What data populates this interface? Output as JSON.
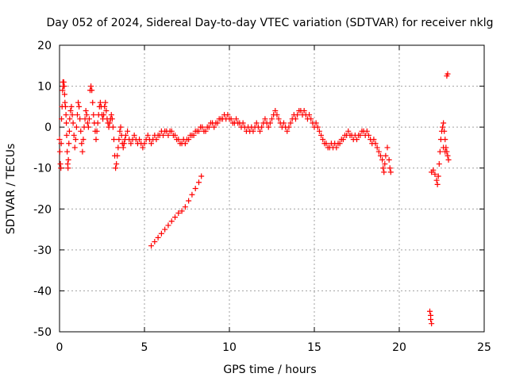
{
  "chart_data": {
    "type": "scatter",
    "title": "Day 052 of 2024, Sidereal Day-to-day VTEC variation (SDTVAR) for receiver nklg",
    "xlabel": "GPS time / hours",
    "ylabel": "SDTVAR / TECUs",
    "xlim": [
      0,
      25
    ],
    "ylim": [
      -50,
      20
    ],
    "xticks": [
      0,
      5,
      10,
      15,
      20,
      25
    ],
    "yticks": [
      -50,
      -40,
      -30,
      -20,
      -10,
      0,
      10,
      20
    ],
    "grid": true,
    "marker": "+",
    "color": "#ff0000",
    "series": [
      {
        "name": "nklg",
        "points": [
          [
            0.0,
            -3
          ],
          [
            0.02,
            -6
          ],
          [
            0.05,
            -9
          ],
          [
            0.08,
            -10
          ],
          [
            0.1,
            -4
          ],
          [
            0.12,
            2
          ],
          [
            0.15,
            5
          ],
          [
            0.18,
            9
          ],
          [
            0.2,
            11
          ],
          [
            0.22,
            10
          ],
          [
            0.25,
            11
          ],
          [
            0.28,
            10
          ],
          [
            0.3,
            8
          ],
          [
            0.32,
            6
          ],
          [
            0.35,
            5
          ],
          [
            0.38,
            3
          ],
          [
            0.4,
            1
          ],
          [
            0.42,
            -2
          ],
          [
            0.45,
            -6
          ],
          [
            0.48,
            -9
          ],
          [
            0.5,
            -10
          ],
          [
            0.52,
            -8
          ],
          [
            0.55,
            -4
          ],
          [
            0.58,
            -1
          ],
          [
            0.6,
            2
          ],
          [
            0.65,
            4
          ],
          [
            0.7,
            5
          ],
          [
            0.75,
            3
          ],
          [
            0.8,
            1
          ],
          [
            0.85,
            -2
          ],
          [
            0.9,
            -5
          ],
          [
            0.95,
            -3
          ],
          [
            1.0,
            0
          ],
          [
            1.05,
            3
          ],
          [
            1.1,
            6
          ],
          [
            1.15,
            5
          ],
          [
            1.2,
            2
          ],
          [
            1.25,
            -1
          ],
          [
            1.3,
            -4
          ],
          [
            1.35,
            -6
          ],
          [
            1.4,
            -3
          ],
          [
            1.45,
            0
          ],
          [
            1.5,
            2
          ],
          [
            1.55,
            4
          ],
          [
            1.6,
            3
          ],
          [
            1.65,
            1
          ],
          [
            1.7,
            0
          ],
          [
            1.75,
            2
          ],
          [
            1.8,
            9
          ],
          [
            1.85,
            10
          ],
          [
            1.9,
            9
          ],
          [
            1.95,
            6
          ],
          [
            2.0,
            3
          ],
          [
            2.05,
            1
          ],
          [
            2.1,
            -1
          ],
          [
            2.15,
            -3
          ],
          [
            2.2,
            -1
          ],
          [
            2.25,
            1
          ],
          [
            2.3,
            3
          ],
          [
            2.35,
            5
          ],
          [
            2.4,
            6
          ],
          [
            2.45,
            5
          ],
          [
            2.5,
            3
          ],
          [
            2.55,
            2
          ],
          [
            2.6,
            3
          ],
          [
            2.65,
            5
          ],
          [
            2.7,
            6
          ],
          [
            2.75,
            4
          ],
          [
            2.8,
            2
          ],
          [
            2.85,
            1
          ],
          [
            2.9,
            0
          ],
          [
            2.95,
            1
          ],
          [
            3.0,
            2
          ],
          [
            3.05,
            3
          ],
          [
            3.1,
            2
          ],
          [
            3.15,
            0
          ],
          [
            3.2,
            -3
          ],
          [
            3.25,
            -7
          ],
          [
            3.3,
            -10
          ],
          [
            3.35,
            -9
          ],
          [
            3.4,
            -7
          ],
          [
            3.45,
            -5
          ],
          [
            3.5,
            -3
          ],
          [
            3.55,
            -1
          ],
          [
            3.6,
            0
          ],
          [
            3.65,
            -2
          ],
          [
            3.7,
            -4
          ],
          [
            3.75,
            -5
          ],
          [
            3.8,
            -4
          ],
          [
            3.85,
            -3
          ],
          [
            3.9,
            -2
          ],
          [
            4.0,
            -1
          ],
          [
            4.1,
            -3
          ],
          [
            4.2,
            -4
          ],
          [
            4.3,
            -3
          ],
          [
            4.4,
            -2
          ],
          [
            4.5,
            -3
          ],
          [
            4.6,
            -4
          ],
          [
            4.7,
            -3
          ],
          [
            4.8,
            -4
          ],
          [
            4.9,
            -5
          ],
          [
            5.0,
            -4
          ],
          [
            5.1,
            -3
          ],
          [
            5.2,
            -2
          ],
          [
            5.3,
            -3
          ],
          [
            5.4,
            -4
          ],
          [
            5.5,
            -3
          ],
          [
            5.6,
            -2
          ],
          [
            5.7,
            -3
          ],
          [
            5.8,
            -2
          ],
          [
            5.9,
            -2
          ],
          [
            6.0,
            -1
          ],
          [
            6.1,
            -2
          ],
          [
            6.2,
            -1
          ],
          [
            6.3,
            -1
          ],
          [
            6.4,
            -2
          ],
          [
            6.5,
            -1
          ],
          [
            6.6,
            -1
          ],
          [
            6.7,
            -2
          ],
          [
            6.8,
            -2
          ],
          [
            6.9,
            -3
          ],
          [
            7.0,
            -3
          ],
          [
            7.1,
            -4
          ],
          [
            7.2,
            -4
          ],
          [
            7.3,
            -3
          ],
          [
            7.4,
            -4
          ],
          [
            7.5,
            -3
          ],
          [
            7.6,
            -3
          ],
          [
            7.7,
            -2
          ],
          [
            7.8,
            -2
          ],
          [
            7.9,
            -2
          ],
          [
            8.0,
            -1
          ],
          [
            8.1,
            -1
          ],
          [
            8.2,
            -1
          ],
          [
            8.3,
            0
          ],
          [
            8.4,
            0
          ],
          [
            8.5,
            -1
          ],
          [
            8.6,
            -1
          ],
          [
            8.7,
            0
          ],
          [
            8.8,
            0
          ],
          [
            8.9,
            1
          ],
          [
            9.0,
            1
          ],
          [
            9.1,
            0
          ],
          [
            9.2,
            1
          ],
          [
            9.3,
            1
          ],
          [
            9.4,
            2
          ],
          [
            9.5,
            2
          ],
          [
            9.6,
            2
          ],
          [
            9.7,
            3
          ],
          [
            9.8,
            2
          ],
          [
            9.9,
            3
          ],
          [
            10.0,
            2
          ],
          [
            10.1,
            2
          ],
          [
            10.2,
            1
          ],
          [
            10.3,
            1
          ],
          [
            10.4,
            2
          ],
          [
            10.5,
            1
          ],
          [
            10.6,
            1
          ],
          [
            10.7,
            0
          ],
          [
            10.8,
            1
          ],
          [
            10.9,
            0
          ],
          [
            11.0,
            -1
          ],
          [
            11.1,
            0
          ],
          [
            11.2,
            -1
          ],
          [
            11.3,
            0
          ],
          [
            11.4,
            -1
          ],
          [
            11.5,
            0
          ],
          [
            11.6,
            1
          ],
          [
            11.7,
            0
          ],
          [
            11.8,
            -1
          ],
          [
            11.9,
            0
          ],
          [
            12.0,
            1
          ],
          [
            12.1,
            2
          ],
          [
            12.2,
            1
          ],
          [
            12.3,
            0
          ],
          [
            12.4,
            1
          ],
          [
            12.5,
            2
          ],
          [
            12.6,
            3
          ],
          [
            12.7,
            4
          ],
          [
            12.8,
            3
          ],
          [
            12.9,
            2
          ],
          [
            13.0,
            1
          ],
          [
            13.1,
            0
          ],
          [
            13.2,
            1
          ],
          [
            13.3,
            0
          ],
          [
            13.4,
            -1
          ],
          [
            13.5,
            0
          ],
          [
            13.6,
            1
          ],
          [
            13.7,
            2
          ],
          [
            13.8,
            3
          ],
          [
            13.9,
            2
          ],
          [
            14.0,
            3
          ],
          [
            14.1,
            4
          ],
          [
            14.2,
            4
          ],
          [
            14.3,
            3
          ],
          [
            14.4,
            4
          ],
          [
            14.5,
            3
          ],
          [
            14.6,
            2
          ],
          [
            14.7,
            3
          ],
          [
            14.8,
            2
          ],
          [
            14.9,
            1
          ],
          [
            15.0,
            0
          ],
          [
            15.1,
            1
          ],
          [
            15.2,
            0
          ],
          [
            15.3,
            -1
          ],
          [
            15.4,
            -2
          ],
          [
            15.5,
            -3
          ],
          [
            15.6,
            -4
          ],
          [
            15.7,
            -4
          ],
          [
            15.8,
            -5
          ],
          [
            15.9,
            -5
          ],
          [
            16.0,
            -4
          ],
          [
            16.1,
            -5
          ],
          [
            16.2,
            -4
          ],
          [
            16.3,
            -5
          ],
          [
            16.4,
            -4
          ],
          [
            16.5,
            -4
          ],
          [
            16.6,
            -3
          ],
          [
            16.7,
            -3
          ],
          [
            16.8,
            -2
          ],
          [
            16.9,
            -2
          ],
          [
            17.0,
            -1
          ],
          [
            17.1,
            -2
          ],
          [
            17.2,
            -2
          ],
          [
            17.3,
            -3
          ],
          [
            17.4,
            -2
          ],
          [
            17.5,
            -3
          ],
          [
            17.6,
            -2
          ],
          [
            17.7,
            -2
          ],
          [
            17.8,
            -1
          ],
          [
            17.9,
            -1
          ],
          [
            18.0,
            -2
          ],
          [
            18.1,
            -1
          ],
          [
            18.2,
            -2
          ],
          [
            18.3,
            -3
          ],
          [
            18.4,
            -4
          ],
          [
            18.5,
            -3
          ],
          [
            18.6,
            -4
          ],
          [
            18.7,
            -5
          ],
          [
            18.8,
            -6
          ],
          [
            18.9,
            -7
          ],
          [
            19.0,
            -8
          ],
          [
            19.05,
            -10
          ],
          [
            19.1,
            -11
          ],
          [
            19.15,
            -9
          ],
          [
            19.2,
            -7
          ],
          [
            19.3,
            -5
          ],
          [
            19.4,
            -8
          ],
          [
            19.45,
            -10
          ],
          [
            19.5,
            -11
          ],
          [
            5.4,
            -29
          ],
          [
            5.6,
            -28
          ],
          [
            5.8,
            -27
          ],
          [
            6.0,
            -26
          ],
          [
            6.2,
            -25
          ],
          [
            6.4,
            -24
          ],
          [
            6.6,
            -23
          ],
          [
            6.8,
            -22
          ],
          [
            7.0,
            -21
          ],
          [
            7.2,
            -20.5
          ],
          [
            7.4,
            -19.5
          ],
          [
            7.6,
            -18
          ],
          [
            7.8,
            -16.5
          ],
          [
            8.0,
            -15
          ],
          [
            8.2,
            -13.5
          ],
          [
            8.35,
            -12
          ],
          [
            21.8,
            -45
          ],
          [
            21.85,
            -46
          ],
          [
            21.85,
            -47
          ],
          [
            21.9,
            -48
          ],
          [
            21.9,
            -11
          ],
          [
            22.0,
            -10.5
          ],
          [
            22.1,
            -11.5
          ],
          [
            22.2,
            -13
          ],
          [
            22.25,
            -14
          ],
          [
            22.3,
            -12
          ],
          [
            22.35,
            -9
          ],
          [
            22.4,
            -6
          ],
          [
            22.45,
            -3
          ],
          [
            22.5,
            -1
          ],
          [
            22.55,
            0
          ],
          [
            22.6,
            1
          ],
          [
            22.65,
            -1
          ],
          [
            22.7,
            -3
          ],
          [
            22.75,
            -5
          ],
          [
            22.8,
            -6
          ],
          [
            22.85,
            -7
          ],
          [
            22.9,
            -8
          ],
          [
            22.7,
            -6
          ],
          [
            22.6,
            -5
          ],
          [
            22.8,
            12.5
          ],
          [
            22.85,
            13
          ]
        ]
      }
    ]
  }
}
